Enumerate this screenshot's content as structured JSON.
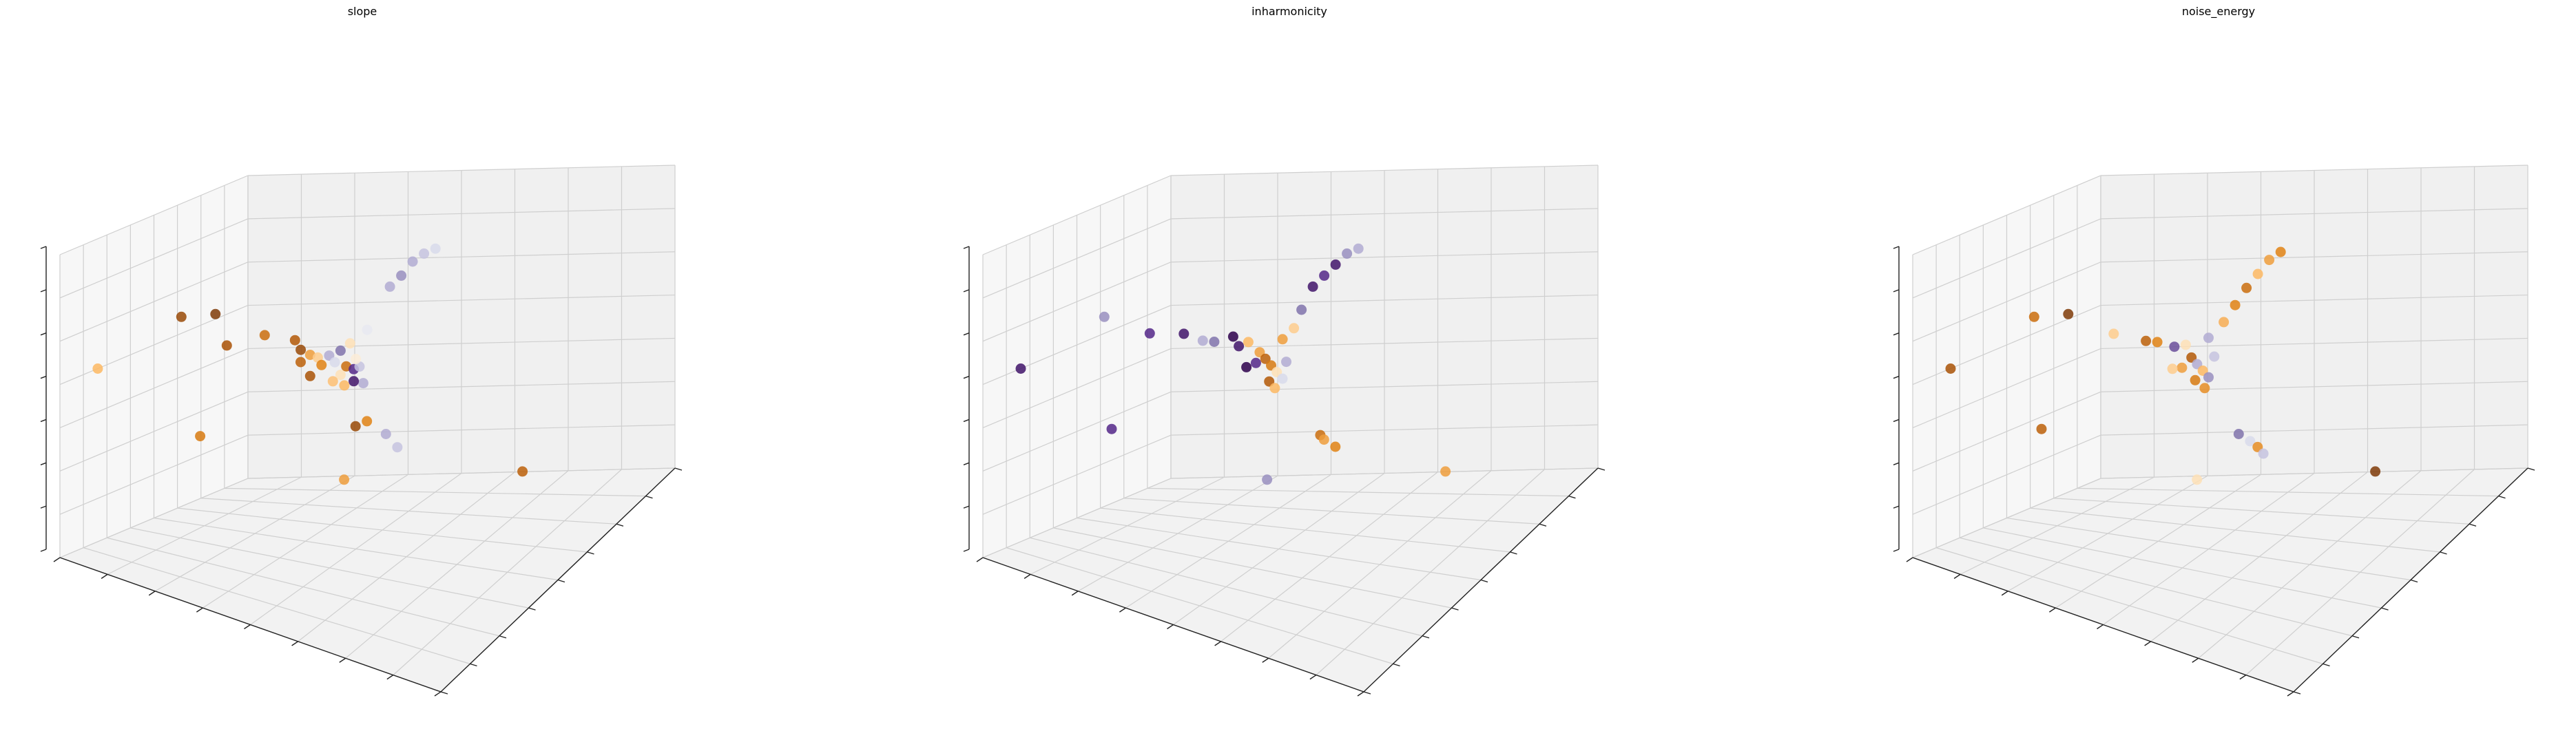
{
  "figure": {
    "colormap": [
      "#2d004b",
      "#542788",
      "#8073ac",
      "#b2abd2",
      "#d8daeb",
      "#f7f7f7",
      "#fee0b6",
      "#fdb863",
      "#e08214",
      "#b35806",
      "#7f3b08"
    ]
  },
  "chart_data": [
    {
      "type": "scatter",
      "subtype": "scatter-3d",
      "title": "slope",
      "xlabel": "",
      "ylabel": "",
      "zlabel": "",
      "grid": true,
      "tick_labels": false,
      "xlim": [
        0,
        1
      ],
      "ylim": [
        0,
        1
      ],
      "zlim": [
        0,
        1
      ],
      "points": [
        {
          "x": 0.05,
          "y": 0.9,
          "z": 0.62,
          "c": 0.7
        },
        {
          "x": 0.22,
          "y": 0.8,
          "z": 0.84,
          "c": 0.95
        },
        {
          "x": 0.28,
          "y": 0.74,
          "z": 0.86,
          "c": 1.0
        },
        {
          "x": 0.3,
          "y": 0.72,
          "z": 0.76,
          "c": 0.92
        },
        {
          "x": 0.35,
          "y": 0.62,
          "z": 0.79,
          "c": 0.85
        },
        {
          "x": 0.4,
          "y": 0.56,
          "z": 0.78,
          "c": 0.9
        },
        {
          "x": 0.41,
          "y": 0.55,
          "z": 0.75,
          "c": 0.95
        },
        {
          "x": 0.42,
          "y": 0.52,
          "z": 0.73,
          "c": 0.75
        },
        {
          "x": 0.44,
          "y": 0.52,
          "z": 0.73,
          "c": 0.65
        },
        {
          "x": 0.46,
          "y": 0.5,
          "z": 0.74,
          "c": 0.3
        },
        {
          "x": 0.48,
          "y": 0.48,
          "z": 0.76,
          "c": 0.2
        },
        {
          "x": 0.47,
          "y": 0.49,
          "z": 0.72,
          "c": 0.4
        },
        {
          "x": 0.49,
          "y": 0.47,
          "z": 0.71,
          "c": 0.85
        },
        {
          "x": 0.5,
          "y": 0.45,
          "z": 0.7,
          "c": 0.1
        },
        {
          "x": 0.48,
          "y": 0.48,
          "z": 0.68,
          "c": 0.6
        },
        {
          "x": 0.52,
          "y": 0.46,
          "z": 0.72,
          "c": 0.35
        },
        {
          "x": 0.52,
          "y": 0.44,
          "z": 0.66,
          "c": 0.3
        },
        {
          "x": 0.44,
          "y": 0.5,
          "z": 0.7,
          "c": 0.8
        },
        {
          "x": 0.4,
          "y": 0.53,
          "z": 0.7,
          "c": 0.88
        },
        {
          "x": 0.42,
          "y": 0.52,
          "z": 0.66,
          "c": 0.92
        },
        {
          "x": 0.46,
          "y": 0.48,
          "z": 0.65,
          "c": 0.68
        },
        {
          "x": 0.5,
          "y": 0.45,
          "z": 0.66,
          "c": 0.05
        },
        {
          "x": 0.48,
          "y": 0.46,
          "z": 0.64,
          "c": 0.7
        },
        {
          "x": 0.53,
          "y": 0.5,
          "z": 0.76,
          "c": 0.55
        },
        {
          "x": 0.51,
          "y": 0.49,
          "z": 0.8,
          "c": 0.6
        },
        {
          "x": 0.55,
          "y": 0.48,
          "z": 0.86,
          "c": 0.45
        },
        {
          "x": 0.58,
          "y": 0.42,
          "z": 1.0,
          "c": 0.3
        },
        {
          "x": 0.6,
          "y": 0.4,
          "z": 1.04,
          "c": 0.25
        },
        {
          "x": 0.62,
          "y": 0.38,
          "z": 1.09,
          "c": 0.3
        },
        {
          "x": 0.64,
          "y": 0.36,
          "z": 1.12,
          "c": 0.35
        },
        {
          "x": 0.66,
          "y": 0.34,
          "z": 1.14,
          "c": 0.4
        },
        {
          "x": 0.47,
          "y": 0.38,
          "z": 0.48,
          "c": 0.95
        },
        {
          "x": 0.49,
          "y": 0.36,
          "z": 0.5,
          "c": 0.8
        },
        {
          "x": 0.54,
          "y": 0.36,
          "z": 0.48,
          "c": 0.3
        },
        {
          "x": 0.56,
          "y": 0.34,
          "z": 0.44,
          "c": 0.35
        },
        {
          "x": 0.22,
          "y": 0.7,
          "z": 0.42,
          "c": 0.82
        },
        {
          "x": 0.45,
          "y": 0.4,
          "z": 0.3,
          "c": 0.75
        },
        {
          "x": 0.78,
          "y": 0.12,
          "z": 0.4,
          "c": 0.88
        }
      ]
    },
    {
      "type": "scatter",
      "subtype": "scatter-3d",
      "title": "inharmonicity",
      "xlabel": "",
      "ylabel": "",
      "zlabel": "",
      "grid": true,
      "tick_labels": false,
      "xlim": [
        0,
        1
      ],
      "ylim": [
        0,
        1
      ],
      "zlim": [
        0,
        1
      ],
      "points": [
        {
          "x": 0.05,
          "y": 0.9,
          "z": 0.62,
          "c": 0.05
        },
        {
          "x": 0.22,
          "y": 0.8,
          "z": 0.84,
          "c": 0.25
        },
        {
          "x": 0.3,
          "y": 0.72,
          "z": 0.8,
          "c": 0.1
        },
        {
          "x": 0.35,
          "y": 0.64,
          "z": 0.8,
          "c": 0.05
        },
        {
          "x": 0.38,
          "y": 0.6,
          "z": 0.78,
          "c": 0.3
        },
        {
          "x": 0.4,
          "y": 0.58,
          "z": 0.78,
          "c": 0.2
        },
        {
          "x": 0.43,
          "y": 0.54,
          "z": 0.8,
          "c": 0.0
        },
        {
          "x": 0.44,
          "y": 0.53,
          "z": 0.77,
          "c": 0.05
        },
        {
          "x": 0.46,
          "y": 0.52,
          "z": 0.79,
          "c": 0.7
        },
        {
          "x": 0.48,
          "y": 0.5,
          "z": 0.76,
          "c": 0.75
        },
        {
          "x": 0.49,
          "y": 0.49,
          "z": 0.74,
          "c": 0.88
        },
        {
          "x": 0.5,
          "y": 0.48,
          "z": 0.72,
          "c": 0.82
        },
        {
          "x": 0.51,
          "y": 0.47,
          "z": 0.7,
          "c": 0.6
        },
        {
          "x": 0.52,
          "y": 0.46,
          "z": 0.68,
          "c": 0.4
        },
        {
          "x": 0.47,
          "y": 0.5,
          "z": 0.72,
          "c": 0.1
        },
        {
          "x": 0.45,
          "y": 0.51,
          "z": 0.7,
          "c": 0.0
        },
        {
          "x": 0.49,
          "y": 0.47,
          "z": 0.66,
          "c": 0.9
        },
        {
          "x": 0.5,
          "y": 0.46,
          "z": 0.64,
          "c": 0.7
        },
        {
          "x": 0.53,
          "y": 0.46,
          "z": 0.74,
          "c": 0.3
        },
        {
          "x": 0.53,
          "y": 0.48,
          "z": 0.82,
          "c": 0.75
        },
        {
          "x": 0.55,
          "y": 0.46,
          "z": 0.86,
          "c": 0.65
        },
        {
          "x": 0.56,
          "y": 0.44,
          "z": 0.92,
          "c": 0.2
        },
        {
          "x": 0.58,
          "y": 0.42,
          "z": 1.0,
          "c": 0.05
        },
        {
          "x": 0.6,
          "y": 0.4,
          "z": 1.04,
          "c": 0.1
        },
        {
          "x": 0.62,
          "y": 0.38,
          "z": 1.08,
          "c": 0.05
        },
        {
          "x": 0.64,
          "y": 0.36,
          "z": 1.12,
          "c": 0.25
        },
        {
          "x": 0.66,
          "y": 0.34,
          "z": 1.14,
          "c": 0.3
        },
        {
          "x": 0.56,
          "y": 0.34,
          "z": 0.48,
          "c": 0.85
        },
        {
          "x": 0.56,
          "y": 0.32,
          "z": 0.46,
          "c": 0.75
        },
        {
          "x": 0.58,
          "y": 0.3,
          "z": 0.44,
          "c": 0.8
        },
        {
          "x": 0.2,
          "y": 0.72,
          "z": 0.44,
          "c": 0.1
        },
        {
          "x": 0.45,
          "y": 0.4,
          "z": 0.3,
          "c": 0.25
        },
        {
          "x": 0.78,
          "y": 0.12,
          "z": 0.4,
          "c": 0.75
        }
      ]
    },
    {
      "type": "scatter",
      "subtype": "scatter-3d",
      "title": "noise_energy",
      "xlabel": "",
      "ylabel": "",
      "zlabel": "",
      "grid": true,
      "tick_labels": false,
      "xlim": [
        0,
        1
      ],
      "ylim": [
        0,
        1
      ],
      "zlim": [
        0,
        1
      ],
      "points": [
        {
          "x": 0.05,
          "y": 0.9,
          "z": 0.62,
          "c": 0.92
        },
        {
          "x": 0.22,
          "y": 0.8,
          "z": 0.84,
          "c": 0.85
        },
        {
          "x": 0.28,
          "y": 0.74,
          "z": 0.86,
          "c": 1.0
        },
        {
          "x": 0.35,
          "y": 0.64,
          "z": 0.8,
          "c": 0.65
        },
        {
          "x": 0.4,
          "y": 0.57,
          "z": 0.78,
          "c": 0.88
        },
        {
          "x": 0.42,
          "y": 0.55,
          "z": 0.78,
          "c": 0.8
        },
        {
          "x": 0.45,
          "y": 0.52,
          "z": 0.77,
          "c": 0.15
        },
        {
          "x": 0.47,
          "y": 0.5,
          "z": 0.78,
          "c": 0.6
        },
        {
          "x": 0.48,
          "y": 0.49,
          "z": 0.74,
          "c": 0.9
        },
        {
          "x": 0.49,
          "y": 0.48,
          "z": 0.72,
          "c": 0.3
        },
        {
          "x": 0.5,
          "y": 0.47,
          "z": 0.7,
          "c": 0.7
        },
        {
          "x": 0.51,
          "y": 0.46,
          "z": 0.68,
          "c": 0.25
        },
        {
          "x": 0.46,
          "y": 0.5,
          "z": 0.7,
          "c": 0.75
        },
        {
          "x": 0.44,
          "y": 0.51,
          "z": 0.69,
          "c": 0.65
        },
        {
          "x": 0.48,
          "y": 0.47,
          "z": 0.66,
          "c": 0.82
        },
        {
          "x": 0.5,
          "y": 0.46,
          "z": 0.64,
          "c": 0.78
        },
        {
          "x": 0.53,
          "y": 0.47,
          "z": 0.76,
          "c": 0.35
        },
        {
          "x": 0.52,
          "y": 0.48,
          "z": 0.82,
          "c": 0.3
        },
        {
          "x": 0.55,
          "y": 0.46,
          "z": 0.88,
          "c": 0.72
        },
        {
          "x": 0.57,
          "y": 0.44,
          "z": 0.94,
          "c": 0.8
        },
        {
          "x": 0.59,
          "y": 0.42,
          "z": 1.0,
          "c": 0.85
        },
        {
          "x": 0.61,
          "y": 0.4,
          "z": 1.05,
          "c": 0.7
        },
        {
          "x": 0.63,
          "y": 0.38,
          "z": 1.1,
          "c": 0.75
        },
        {
          "x": 0.65,
          "y": 0.36,
          "z": 1.13,
          "c": 0.8
        },
        {
          "x": 0.54,
          "y": 0.36,
          "z": 0.48,
          "c": 0.2
        },
        {
          "x": 0.56,
          "y": 0.34,
          "z": 0.46,
          "c": 0.4
        },
        {
          "x": 0.57,
          "y": 0.32,
          "z": 0.44,
          "c": 0.78
        },
        {
          "x": 0.58,
          "y": 0.31,
          "z": 0.42,
          "c": 0.35
        },
        {
          "x": 0.2,
          "y": 0.72,
          "z": 0.44,
          "c": 0.88
        },
        {
          "x": 0.45,
          "y": 0.4,
          "z": 0.3,
          "c": 0.6
        },
        {
          "x": 0.78,
          "y": 0.12,
          "z": 0.4,
          "c": 1.0
        }
      ]
    }
  ]
}
